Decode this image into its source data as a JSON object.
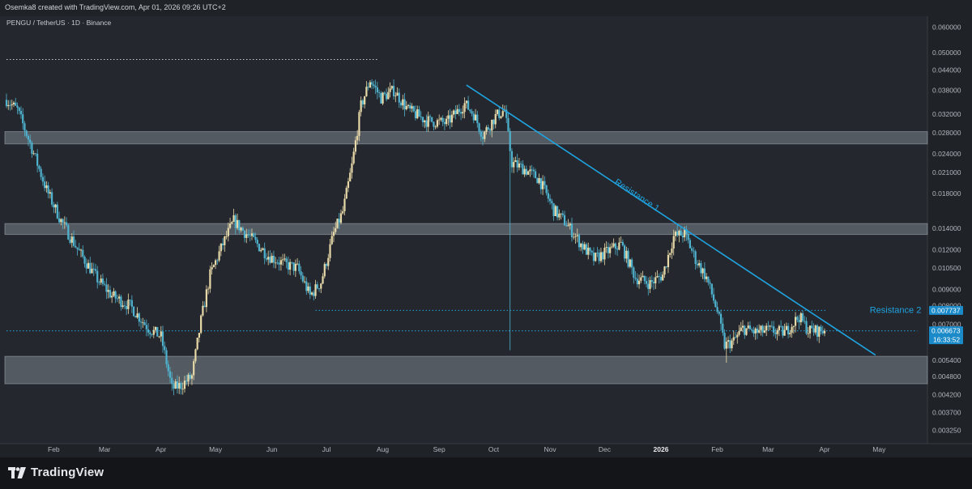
{
  "attribution": "Osemka8 created with TradingView.com, Apr 01, 2026 09:26 UTC+2",
  "brand": {
    "name": "TradingView",
    "icon": "tradingview-logo-icon"
  },
  "colors": {
    "background": "#24272d",
    "up": "#e8d9a8",
    "down": "#4fb3cf",
    "trendline": "#1fa3e0",
    "zone": "#8e9aa3",
    "price_label": "#1b8ac8"
  },
  "chart_data": {
    "type": "candlestick",
    "title": "PENGU / TetherUS · 1D · Binance",
    "scale": "log",
    "ylim": [
      0.00295,
      0.065
    ],
    "y_ticks": [
      "0.060000",
      "0.050000",
      "0.044000",
      "0.038000",
      "0.032000",
      "0.028000",
      "0.024000",
      "0.021000",
      "0.018000",
      "0.014000",
      "0.012000",
      "0.010500",
      "0.009000",
      "0.008000",
      "0.007000",
      "0.005400",
      "0.004800",
      "0.004200",
      "0.003700",
      "0.003250"
    ],
    "x_ticks": [
      "Feb",
      "Mar",
      "Apr",
      "May",
      "Jun",
      "Jul",
      "Aug",
      "Sep",
      "Oct",
      "Nov",
      "Dec",
      "2026",
      "Feb",
      "Mar",
      "Apr",
      "May"
    ],
    "date_range": [
      "2025-01-06",
      "2026-04-01"
    ],
    "x_axis_end": "2026-05-22",
    "close_path": [
      [
        "2025-01-06",
        0.0355
      ],
      [
        "2025-01-12",
        0.033
      ],
      [
        "2025-01-20",
        0.025
      ],
      [
        "2025-01-28",
        0.0185
      ],
      [
        "2025-02-05",
        0.0148
      ],
      [
        "2025-02-15",
        0.0118
      ],
      [
        "2025-02-25",
        0.0097
      ],
      [
        "2025-03-05",
        0.0086
      ],
      [
        "2025-03-15",
        0.008
      ],
      [
        "2025-03-25",
        0.0068
      ],
      [
        "2025-04-01",
        0.0064
      ],
      [
        "2025-04-07",
        0.0044
      ],
      [
        "2025-04-12",
        0.0045
      ],
      [
        "2025-04-18",
        0.0048
      ],
      [
        "2025-04-23",
        0.0072
      ],
      [
        "2025-04-28",
        0.01
      ],
      [
        "2025-05-05",
        0.0125
      ],
      [
        "2025-05-11",
        0.0148
      ],
      [
        "2025-05-16",
        0.0138
      ],
      [
        "2025-05-22",
        0.0128
      ],
      [
        "2025-05-30",
        0.0115
      ],
      [
        "2025-06-08",
        0.0108
      ],
      [
        "2025-06-15",
        0.0105
      ],
      [
        "2025-06-22",
        0.0086
      ],
      [
        "2025-06-28",
        0.0095
      ],
      [
        "2025-07-05",
        0.0135
      ],
      [
        "2025-07-10",
        0.0158
      ],
      [
        "2025-07-15",
        0.022
      ],
      [
        "2025-07-20",
        0.034
      ],
      [
        "2025-07-25",
        0.041
      ],
      [
        "2025-07-31",
        0.036
      ],
      [
        "2025-08-07",
        0.038
      ],
      [
        "2025-08-15",
        0.033
      ],
      [
        "2025-08-25",
        0.0305
      ],
      [
        "2025-09-05",
        0.03
      ],
      [
        "2025-09-15",
        0.0345
      ],
      [
        "2025-09-20",
        0.032
      ],
      [
        "2025-09-25",
        0.0275
      ],
      [
        "2025-10-02",
        0.0315
      ],
      [
        "2025-10-07",
        0.033
      ],
      [
        "2025-10-11",
        0.0225
      ],
      [
        "2025-10-18",
        0.0215
      ],
      [
        "2025-10-26",
        0.02
      ],
      [
        "2025-11-03",
        0.016
      ],
      [
        "2025-11-10",
        0.0145
      ],
      [
        "2025-11-18",
        0.0125
      ],
      [
        "2025-11-25",
        0.0112
      ],
      [
        "2025-12-02",
        0.0118
      ],
      [
        "2025-12-10",
        0.0125
      ],
      [
        "2025-12-18",
        0.0098
      ],
      [
        "2025-12-26",
        0.0094
      ],
      [
        "2026-01-02",
        0.01
      ],
      [
        "2026-01-08",
        0.0132
      ],
      [
        "2026-01-14",
        0.0135
      ],
      [
        "2026-01-20",
        0.0112
      ],
      [
        "2026-01-26",
        0.0098
      ],
      [
        "2026-02-01",
        0.0077
      ],
      [
        "2026-02-05",
        0.006
      ],
      [
        "2026-02-10",
        0.0062
      ],
      [
        "2026-02-15",
        0.0068
      ],
      [
        "2026-02-22",
        0.0066
      ],
      [
        "2026-03-01",
        0.0067
      ],
      [
        "2026-03-10",
        0.0066
      ],
      [
        "2026-03-18",
        0.0074
      ],
      [
        "2026-03-23",
        0.0067
      ],
      [
        "2026-04-01",
        0.006673
      ]
    ],
    "special_wicks": [
      {
        "date": "2025-10-10",
        "low": 0.0058
      },
      {
        "date": "2026-02-06",
        "low": 0.0053
      }
    ],
    "zones": [
      {
        "low": 0.0258,
        "high": 0.0282
      },
      {
        "low": 0.0134,
        "high": 0.0145
      },
      {
        "low": 0.00455,
        "high": 0.00555
      }
    ],
    "hlines": [
      {
        "from": "2025-01-06",
        "to": "2025-07-29",
        "price": 0.0475,
        "style": "dotted"
      },
      {
        "from": "2025-06-25",
        "to": "2026-04-02",
        "price": 0.007737,
        "style": "dotted"
      },
      {
        "from": "2025-01-06",
        "to": "2026-05-22",
        "price": 0.006673,
        "style": "dotted"
      }
    ],
    "trendline": {
      "from": [
        "2025-09-16",
        0.0395
      ],
      "to": [
        "2026-04-29",
        0.0056
      ]
    },
    "annotations": [
      {
        "text": "Resistance 1",
        "date": "2025-12-18",
        "price": 0.0175
      },
      {
        "text": "Resistance 2",
        "date": "2026-05-10",
        "price": 0.007737
      }
    ],
    "price_labels": [
      {
        "price": 0.007737,
        "text": "0.007737"
      },
      {
        "price": 0.006673,
        "text": "0.006673",
        "subtext": "16:33:52"
      }
    ]
  }
}
